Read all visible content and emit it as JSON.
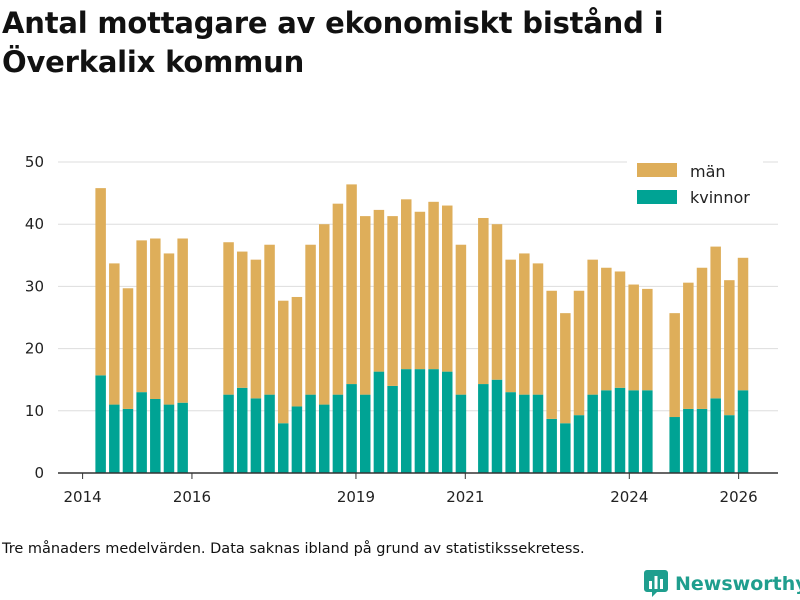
{
  "title": "Antal mottagare av ekonomiskt bistånd i Överkalix kommun",
  "footnote": "Tre månaders medelvärden. Data saknas ibland på grund av statistikssekretess.",
  "brand": "Newsworthy",
  "colors": {
    "man": "#deae5a",
    "kvinnor": "#00a394",
    "grid": "#dddddd",
    "axis": "#333333",
    "brand": "#1f9e8e"
  },
  "icons": {
    "brand_logo": "bar-chart-icon"
  },
  "chart_data": {
    "type": "bar",
    "stacked": true,
    "title": "Antal mottagare av ekonomiskt bistånd i Överkalix kommun",
    "xlabel": "",
    "ylabel": "",
    "ylim": [
      0,
      50
    ],
    "y_ticks": [
      0,
      10,
      20,
      30,
      40,
      50
    ],
    "x_ticks": [
      {
        "label": "2014",
        "t": 2014.0
      },
      {
        "label": "2016",
        "t": 2016.0
      },
      {
        "label": "2019",
        "t": 2019.0
      },
      {
        "label": "2021",
        "t": 2021.0
      },
      {
        "label": "2024",
        "t": 2024.0
      },
      {
        "label": "2026",
        "t": 2026.0
      }
    ],
    "legend": [
      "män",
      "kvinnor"
    ],
    "legend_position": "top-right",
    "grid": true,
    "periods": [
      2014.33,
      2014.58,
      2014.83,
      2015.08,
      2015.33,
      2015.58,
      2015.83,
      2016.67,
      2016.92,
      2017.17,
      2017.42,
      2017.67,
      2017.92,
      2018.17,
      2018.42,
      2018.67,
      2018.92,
      2019.17,
      2019.42,
      2019.67,
      2019.92,
      2020.17,
      2020.42,
      2020.67,
      2020.92,
      2021.33,
      2021.58,
      2021.83,
      2022.08,
      2022.33,
      2022.58,
      2022.83,
      2023.08,
      2023.33,
      2023.58,
      2023.83,
      2024.08,
      2024.33,
      2024.83,
      2025.08,
      2025.33,
      2025.58,
      2025.83,
      2026.08
    ],
    "series": [
      {
        "name": "kvinnor",
        "values": [
          15.7,
          11,
          10.3,
          13,
          11.9,
          11,
          11.3,
          12.6,
          13.7,
          12,
          12.6,
          8,
          10.7,
          12.6,
          11,
          12.6,
          14.3,
          12.6,
          16.3,
          14,
          16.7,
          16.7,
          16.7,
          16.3,
          12.6,
          14.3,
          15,
          13,
          12.6,
          12.6,
          8.7,
          8,
          9.3,
          12.6,
          13.3,
          13.7,
          13.3,
          13.3,
          9,
          10.3,
          10.3,
          12,
          9.3,
          13.3
        ]
      },
      {
        "name": "män",
        "values": [
          30.1,
          22.7,
          19.4,
          24.4,
          25.8,
          24.3,
          26.4,
          24.5,
          21.9,
          22.3,
          24.1,
          19.7,
          17.6,
          24.1,
          29,
          30.7,
          32.1,
          28.7,
          26,
          27.3,
          27.3,
          25.3,
          26.9,
          26.7,
          24.1,
          26.7,
          25,
          21.3,
          22.7,
          21.1,
          20.6,
          17.7,
          20,
          21.7,
          19.7,
          18.7,
          17,
          16.3,
          16.7,
          20.3,
          22.7,
          24.4,
          21.7,
          21.3
        ]
      }
    ]
  }
}
